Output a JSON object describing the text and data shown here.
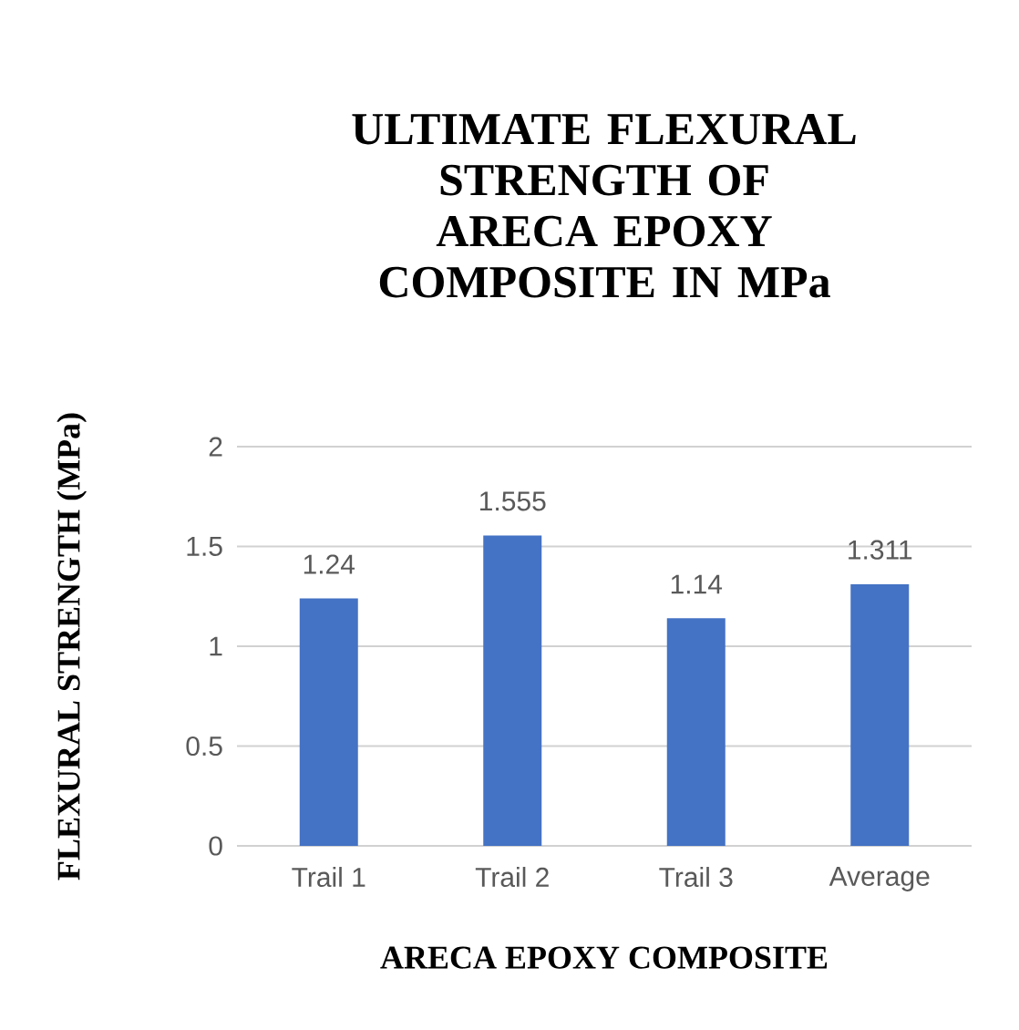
{
  "chart_data": {
    "type": "bar",
    "title": "ULTIMATE FLEXURAL STRENGTH OF ARECA EPOXY COMPOSITE IN MPa",
    "xlabel": "ARECA EPOXY COMPOSITE",
    "ylabel": "FLEXURAL STRENGTH (MPa)",
    "categories": [
      "Trail 1",
      "Trail 2",
      "Trail 3",
      "Average"
    ],
    "values": [
      1.24,
      1.555,
      1.14,
      1.311
    ],
    "color": "#4472c4",
    "ylim": [
      0,
      2
    ],
    "yticks": [
      0,
      0.5,
      1,
      1.5,
      2
    ],
    "grid": "y",
    "data_labels": true
  }
}
